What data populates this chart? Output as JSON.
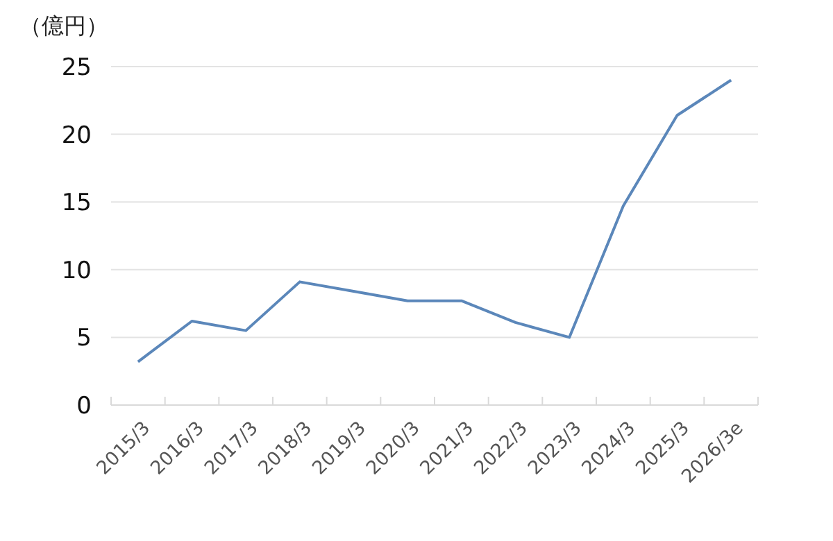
{
  "chart_data": {
    "type": "line",
    "ylabel": "（億円）",
    "categories": [
      "2015/3",
      "2016/3",
      "2017/3",
      "2018/3",
      "2019/3",
      "2020/3",
      "2021/3",
      "2022/3",
      "2023/3",
      "2024/3",
      "2025/3",
      "2026/3e"
    ],
    "series": [
      {
        "color": "#5b87ba",
        "values": [
          3.2,
          6.2,
          5.5,
          9.1,
          8.4,
          7.7,
          7.7,
          6.1,
          5.0,
          14.7,
          21.4,
          24.0
        ]
      }
    ],
    "ylim": [
      0,
      25
    ],
    "yticks": [
      0,
      5,
      10,
      15,
      20,
      25
    ],
    "grid": "y",
    "marker": "none",
    "line_style": "solid"
  }
}
